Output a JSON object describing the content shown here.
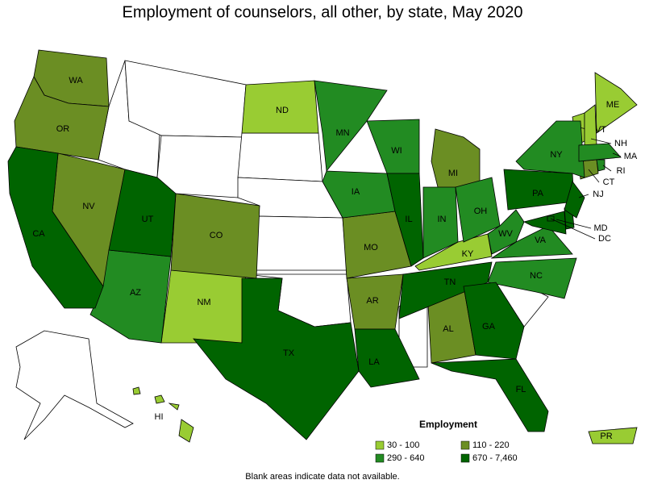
{
  "title": "Employment of counselors, all other, by state, May 2020",
  "legend": {
    "title": "Employment",
    "items": [
      {
        "label": "30 - 100",
        "color": "#99cc33",
        "states": [
          "ND",
          "NM",
          "KY",
          "ME",
          "VT",
          "NH",
          "PR",
          "HI"
        ]
      },
      {
        "label": "110 - 220",
        "color": "#6b8e23",
        "states": [
          "WA",
          "OR",
          "NV",
          "CO",
          "MO",
          "AR",
          "AL",
          "MI",
          "CT"
        ]
      },
      {
        "label": "290 - 640",
        "color": "#228b22",
        "states": [
          "MN",
          "WI",
          "IA",
          "IN",
          "OH",
          "AZ",
          "NY",
          "WV",
          "VA",
          "NC",
          "MA",
          "RI"
        ]
      },
      {
        "label": "670 - 7,460",
        "color": "#006400",
        "states": [
          "CA",
          "UT",
          "TX",
          "LA",
          "IL",
          "TN",
          "GA",
          "FL",
          "PA",
          "NJ",
          "MD",
          "DC"
        ]
      }
    ]
  },
  "note": "Blank areas indicate data not available."
}
